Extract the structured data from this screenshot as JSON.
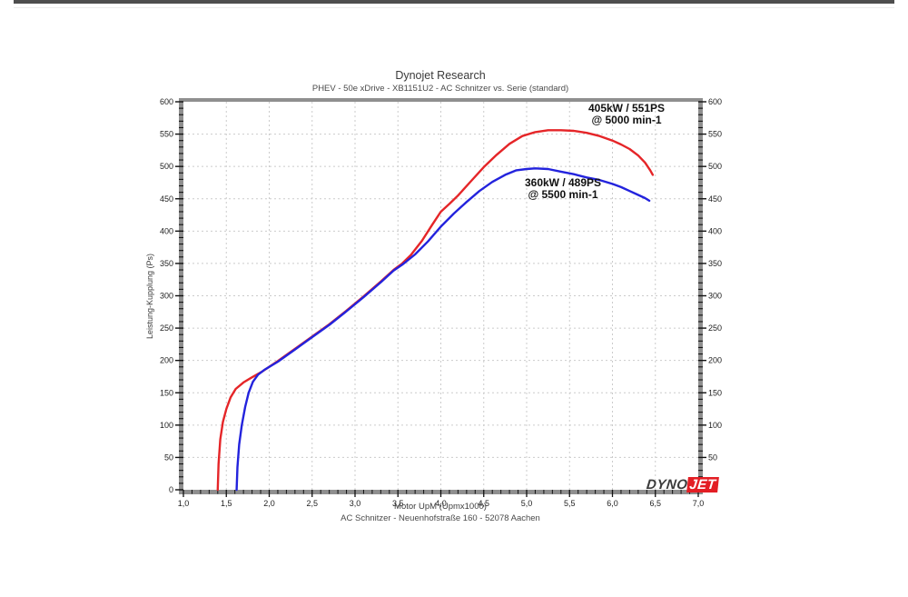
{
  "header": {
    "title": "Dynojet Research",
    "subtitle": "PHEV - 50e xDrive - XB1151U2 - AC Schnitzer vs. Serie (standard)"
  },
  "footer": {
    "address": "AC Schnitzer - Neuenhofstraße 160 - 52078 Aachen"
  },
  "logo": {
    "part1": "DYNO",
    "part2": "JET",
    "accent_color": "#e31e24"
  },
  "annotations": [
    {
      "id": "tuned-peak",
      "line1": "405kW / 551PS",
      "line2": "@ 5000 min-1"
    },
    {
      "id": "stock-peak",
      "line1": "360kW / 489PS",
      "line2": "@ 5500 min-1"
    }
  ],
  "chart_data": {
    "type": "line",
    "title": "Dynojet Research",
    "subtitle": "PHEV - 50e xDrive - XB1151U2 - AC Schnitzer vs. Serie (standard)",
    "xlabel": "Motor UpM (Upmx1000)",
    "ylabel": "Leistung-Kupplung (Ps)",
    "xlim": [
      1.0,
      7.0
    ],
    "ylim": [
      0,
      600
    ],
    "grid": "dashed",
    "grid_color": "#cbcbcb",
    "frame_color": "#8f8f8f",
    "x_ticks": {
      "values": [
        1.0,
        1.5,
        2.0,
        2.5,
        3.0,
        3.5,
        4.0,
        4.5,
        5.0,
        5.5,
        6.0,
        6.5,
        7.0
      ],
      "labels": [
        "1,0",
        "1,5",
        "2,0",
        "2,5",
        "3,0",
        "3,5",
        "4,0",
        "4,5",
        "5,0",
        "5,5",
        "6,0",
        "6,5",
        "7,0"
      ],
      "minor_step": 0.1
    },
    "y_ticks": {
      "values": [
        0,
        50,
        100,
        150,
        200,
        250,
        300,
        350,
        400,
        450,
        500,
        550,
        600
      ],
      "labels": [
        "0",
        "50",
        "100",
        "150",
        "200",
        "250",
        "300",
        "350",
        "400",
        "450",
        "500",
        "550",
        "600"
      ],
      "minor_step": 10
    },
    "series": [
      {
        "name": "AC Schnitzer",
        "color": "#e52528",
        "peak_label": "405kW / 551PS @ 5000 min-1",
        "points": [
          [
            1.4,
            0
          ],
          [
            1.41,
            40
          ],
          [
            1.43,
            78
          ],
          [
            1.46,
            105
          ],
          [
            1.5,
            125
          ],
          [
            1.55,
            143
          ],
          [
            1.61,
            156
          ],
          [
            1.7,
            166
          ],
          [
            1.8,
            174
          ],
          [
            1.92,
            183
          ],
          [
            2.1,
            199
          ],
          [
            2.3,
            218
          ],
          [
            2.5,
            237
          ],
          [
            2.7,
            256
          ],
          [
            2.9,
            277
          ],
          [
            3.1,
            299
          ],
          [
            3.3,
            322
          ],
          [
            3.45,
            340
          ],
          [
            3.55,
            350
          ],
          [
            3.65,
            363
          ],
          [
            3.78,
            385
          ],
          [
            3.9,
            410
          ],
          [
            4.0,
            430
          ],
          [
            4.1,
            442
          ],
          [
            4.2,
            455
          ],
          [
            4.35,
            477
          ],
          [
            4.5,
            499
          ],
          [
            4.65,
            518
          ],
          [
            4.8,
            535
          ],
          [
            4.95,
            547
          ],
          [
            5.1,
            553
          ],
          [
            5.25,
            556
          ],
          [
            5.4,
            556
          ],
          [
            5.55,
            555
          ],
          [
            5.7,
            552
          ],
          [
            5.85,
            547
          ],
          [
            6.0,
            540
          ],
          [
            6.1,
            534
          ],
          [
            6.2,
            527
          ],
          [
            6.3,
            517
          ],
          [
            6.38,
            506
          ],
          [
            6.44,
            494
          ],
          [
            6.47,
            487
          ]
        ]
      },
      {
        "name": "Serie (standard)",
        "color": "#2323dd",
        "peak_label": "360kW / 489PS @ 5500 min-1",
        "points": [
          [
            1.62,
            0
          ],
          [
            1.63,
            35
          ],
          [
            1.65,
            70
          ],
          [
            1.68,
            100
          ],
          [
            1.72,
            128
          ],
          [
            1.76,
            150
          ],
          [
            1.81,
            167
          ],
          [
            1.87,
            178
          ],
          [
            1.95,
            186
          ],
          [
            2.1,
            198
          ],
          [
            2.3,
            217
          ],
          [
            2.5,
            236
          ],
          [
            2.7,
            255
          ],
          [
            2.9,
            276
          ],
          [
            3.1,
            298
          ],
          [
            3.3,
            321
          ],
          [
            3.45,
            339
          ],
          [
            3.55,
            348
          ],
          [
            3.7,
            364
          ],
          [
            3.85,
            384
          ],
          [
            4.0,
            407
          ],
          [
            4.15,
            427
          ],
          [
            4.3,
            445
          ],
          [
            4.45,
            462
          ],
          [
            4.6,
            476
          ],
          [
            4.75,
            487
          ],
          [
            4.88,
            494
          ],
          [
            5.0,
            496
          ],
          [
            5.1,
            497
          ],
          [
            5.25,
            496
          ],
          [
            5.4,
            492
          ],
          [
            5.55,
            488
          ],
          [
            5.7,
            483
          ],
          [
            5.85,
            479
          ],
          [
            6.0,
            473
          ],
          [
            6.1,
            468
          ],
          [
            6.2,
            462
          ],
          [
            6.3,
            456
          ],
          [
            6.38,
            451
          ],
          [
            6.43,
            447
          ]
        ]
      }
    ]
  }
}
